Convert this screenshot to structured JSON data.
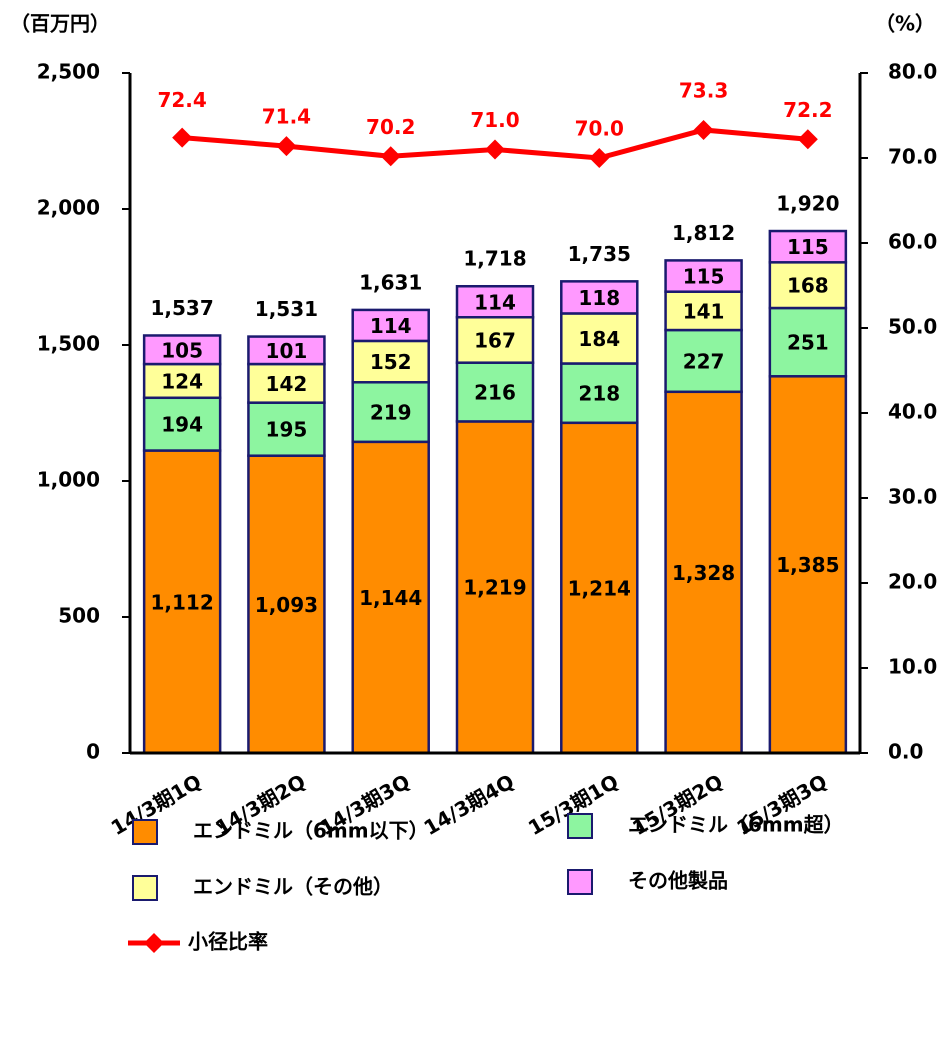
{
  "chart_data": {
    "type": "bar",
    "stacked": true,
    "y_label": "（百万円）",
    "y2_label": "（%）",
    "categories": [
      "14/3期1Q",
      "14/3期2Q",
      "14/3期3Q",
      "14/3期4Q",
      "15/3期1Q",
      "15/3期2Q",
      "15/3期3Q"
    ],
    "series": [
      {
        "name": "エンドミル（6mm以下）",
        "color": "#ff8c00",
        "values": [
          1112,
          1093,
          1144,
          1219,
          1214,
          1328,
          1385
        ],
        "value_labels": [
          "1,112",
          "1,093",
          "1,144",
          "1,219",
          "1,214",
          "1,328",
          "1,385"
        ]
      },
      {
        "name": "エンドミル（6mm超）",
        "color": "#8df5a0",
        "values": [
          194,
          195,
          219,
          216,
          218,
          227,
          251
        ]
      },
      {
        "name": "エンドミル（その他）",
        "color": "#ffff99",
        "values": [
          124,
          142,
          152,
          167,
          184,
          141,
          168
        ]
      },
      {
        "name": "その他製品",
        "color": "#ff99ff",
        "values": [
          105,
          101,
          114,
          114,
          118,
          115,
          115
        ]
      },
      {
        "name": "小径比率",
        "type": "line",
        "axis": "y2",
        "color": "#ff0000",
        "values": [
          72.4,
          71.4,
          70.2,
          71.0,
          70.0,
          73.3,
          72.2
        ],
        "value_labels": [
          "72.4",
          "71.4",
          "70.2",
          "71.0",
          "70.0",
          "73.3",
          "72.2"
        ]
      }
    ],
    "totals": [
      1537,
      1531,
      1631,
      1718,
      1735,
      1812,
      1920
    ],
    "total_labels": [
      "1,537",
      "1,531",
      "1,631",
      "1,718",
      "1,735",
      "1,812",
      "1,920"
    ],
    "ylim": [
      0,
      2500
    ],
    "yticks": [
      0,
      500,
      {
        "value": 1000,
        "label": "1,000"
      },
      {
        "value": 1500,
        "label": "1,500"
      },
      {
        "value": 2000,
        "label": "2,000"
      },
      {
        "value": 2500,
        "label": "2,500"
      }
    ],
    "y2lim": [
      0,
      80
    ],
    "y2ticks": [
      {
        "value": 0,
        "label": "0.0"
      },
      {
        "value": 10,
        "label": "10.0"
      },
      {
        "value": 20,
        "label": "20.0"
      },
      {
        "value": 30,
        "label": "30.0"
      },
      {
        "value": 40,
        "label": "40.0"
      },
      {
        "value": 50,
        "label": "50.0"
      },
      {
        "value": 60,
        "label": "60.0"
      },
      {
        "value": 70,
        "label": "70.0"
      },
      {
        "value": 80,
        "label": "80.0"
      }
    ],
    "grid": false
  }
}
